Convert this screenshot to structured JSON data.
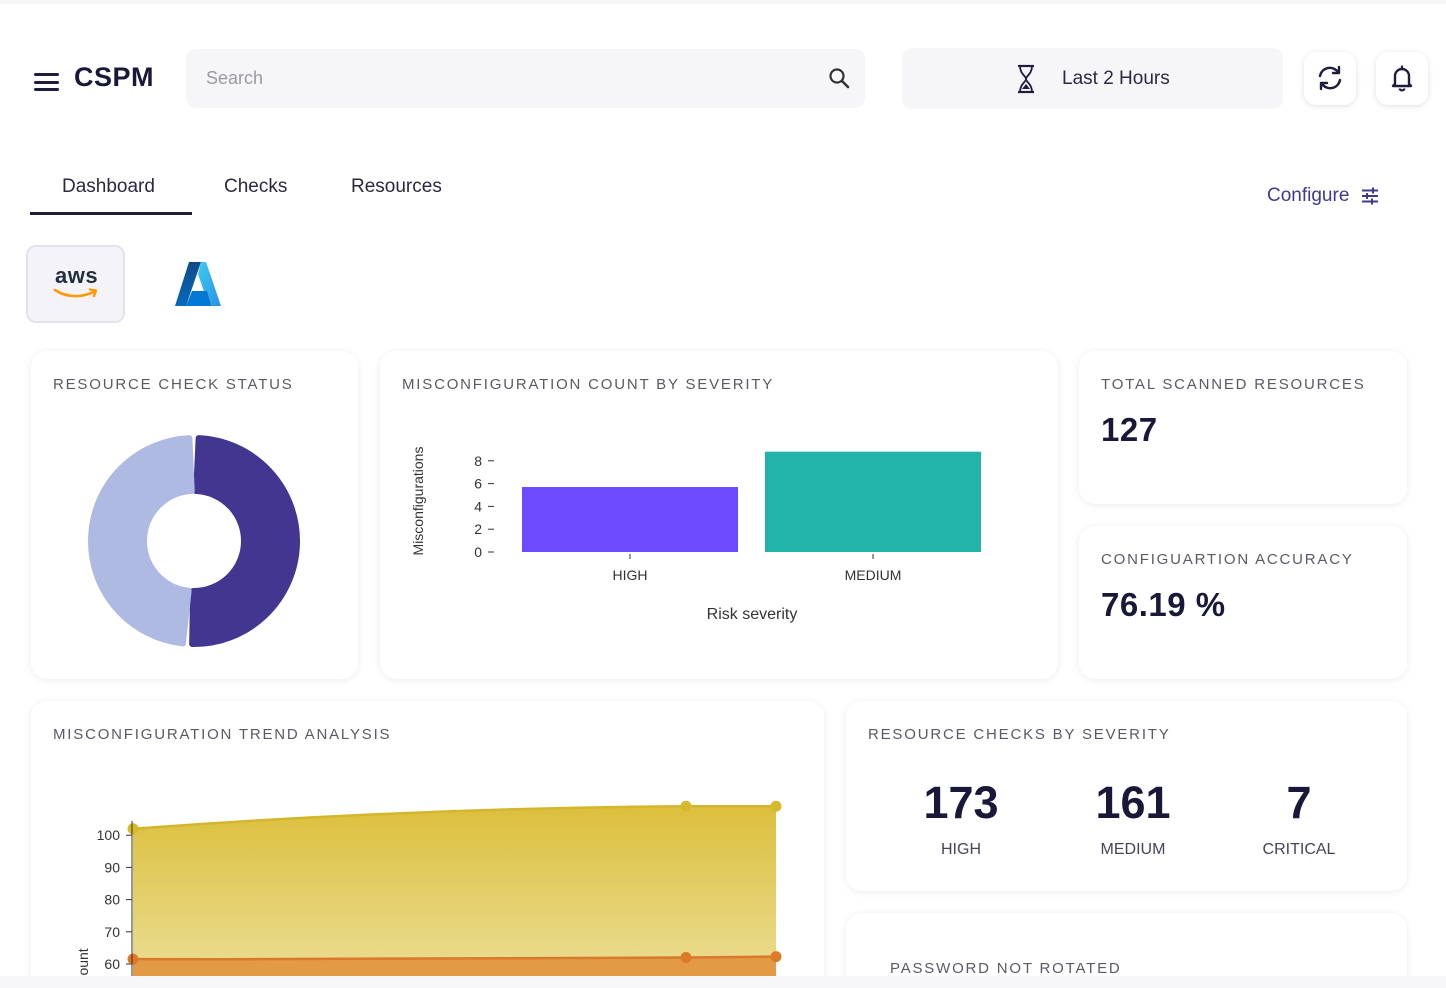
{
  "app": {
    "title": "CSPM"
  },
  "search": {
    "placeholder": "Search"
  },
  "time_range": {
    "label": "Last 2 Hours"
  },
  "tabs": [
    {
      "label": "Dashboard"
    },
    {
      "label": "Checks"
    },
    {
      "label": "Resources"
    }
  ],
  "configure": {
    "label": "Configure"
  },
  "providers": {
    "aws_label": "aws"
  },
  "cards": {
    "resource_check_status": {
      "title": "RESOURCE CHECK STATUS",
      "chart_data": {
        "type": "pie",
        "slices": [
          {
            "value": 0.51,
            "color": "#433691"
          },
          {
            "value": 0.49,
            "color": "#aebae2"
          }
        ]
      }
    },
    "misconfig_by_severity": {
      "title": "MISCONFIGURATION COUNT BY SEVERITY",
      "chart_data": {
        "type": "bar",
        "categories": [
          "HIGH",
          "MEDIUM"
        ],
        "values": [
          5.7,
          8.8
        ],
        "colors": [
          "#6b4aff",
          "#22b3aa"
        ],
        "yticks": [
          0,
          2,
          4,
          6,
          8
        ],
        "ylim": [
          0,
          9
        ],
        "xlabel": "Risk severity",
        "ylabel": "Misconfigurations"
      }
    },
    "total_scanned": {
      "title": "TOTAL SCANNED RESOURCES",
      "value": "127"
    },
    "config_accuracy": {
      "title": "CONFIGUARTION ACCURACY",
      "value": "76.19 %"
    },
    "trend": {
      "title": "MISCONFIGURATION TREND ANALYSIS",
      "chart_data": {
        "type": "area",
        "x": [
          0,
          0.86,
          1
        ],
        "series": [
          {
            "values": [
              102,
              109,
              109
            ],
            "color": "#dcc143"
          },
          {
            "values": [
              61.5,
              62,
              62.3
            ],
            "color": "#e08a3a"
          }
        ],
        "yticks": [
          60,
          70,
          80,
          90,
          100
        ],
        "ylabel": "Count"
      }
    },
    "checks_by_severity": {
      "title": "RESOURCE CHECKS BY SEVERITY",
      "items": [
        {
          "value": "173",
          "label": "HIGH"
        },
        {
          "value": "161",
          "label": "MEDIUM"
        },
        {
          "value": "7",
          "label": "CRITICAL"
        }
      ]
    },
    "password": {
      "title": "PASSWORD NOT ROTATED"
    }
  }
}
